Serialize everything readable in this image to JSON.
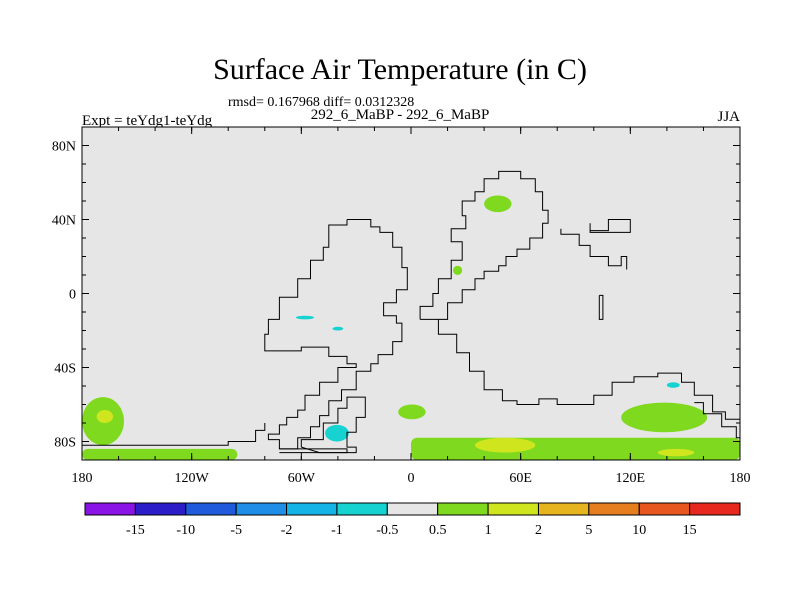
{
  "header": {
    "title": "Surface Air Temperature (in C)",
    "stats": "rmsd= 0.167968 diff= 0.0312328",
    "experiment": "Expt = teYdg1-teYdg",
    "case": "292_6_MaBP - 292_6_MaBP",
    "season": "JJA"
  },
  "colors": {
    "background_field": "#e6e6e6",
    "coastline": "#000000"
  },
  "chart_data": {
    "type": "heatmap",
    "title": "Surface Air Temperature (in C)",
    "subtitle": "rmsd= 0.167968 diff= 0.0312328",
    "x_range": [
      -180,
      180
    ],
    "y_range": [
      -90,
      90
    ],
    "x_ticks": [
      {
        "value": -180,
        "label": "180"
      },
      {
        "value": -120,
        "label": "120W"
      },
      {
        "value": -60,
        "label": "60W"
      },
      {
        "value": 0,
        "label": "0"
      },
      {
        "value": 60,
        "label": "60E"
      },
      {
        "value": 120,
        "label": "120E"
      },
      {
        "value": 180,
        "label": "180"
      }
    ],
    "y_ticks": [
      {
        "value": 80,
        "label": "80N"
      },
      {
        "value": 40,
        "label": "40N"
      },
      {
        "value": 0,
        "label": "0"
      },
      {
        "value": -40,
        "label": "40S"
      },
      {
        "value": -80,
        "label": "80S"
      }
    ],
    "colorbar": {
      "labels": [
        "-15",
        "-10",
        "-5",
        "-2",
        "-1",
        "-0.5",
        "0.5",
        "1",
        "2",
        "5",
        "10",
        "15"
      ],
      "colors": [
        "#8a14e6",
        "#2b1ec8",
        "#1f5adc",
        "#1e8ee6",
        "#14b4e6",
        "#16d2d0",
        "#e6e6e6",
        "#7fd91e",
        "#cfe61e",
        "#e6b41e",
        "#e67d1e",
        "#e6561e",
        "#e6281e"
      ]
    },
    "anomaly_regions": [
      {
        "name": "antarctic-band-west",
        "bin": "0.5 to 1",
        "lon": [
          -180,
          -95
        ],
        "lat": [
          -90,
          -84
        ]
      },
      {
        "name": "antarctic-band-east",
        "bin": "0.5 to 1",
        "lon": [
          0,
          180
        ],
        "lat": [
          -90,
          -78
        ]
      },
      {
        "name": "south-pacific-patch",
        "bin": "0.5 to 1",
        "lon": [
          -180,
          -157
        ],
        "lat": [
          -82,
          -56
        ]
      },
      {
        "name": "south-pacific-core",
        "bin": "1 to 2",
        "lon": [
          -172,
          -163
        ],
        "lat": [
          -70,
          -63
        ]
      },
      {
        "name": "southern-ocean-east",
        "bin": "0.5 to 1",
        "lon": [
          115,
          162
        ],
        "lat": [
          -75,
          -59
        ]
      },
      {
        "name": "antarctic-warm-core-east",
        "bin": "1 to 2",
        "lon": [
          135,
          155
        ],
        "lat": [
          -88,
          -84
        ]
      },
      {
        "name": "antarctic-warm-core-atlantic",
        "bin": "1 to 2",
        "lon": [
          35,
          68
        ],
        "lat": [
          -86,
          -78
        ]
      },
      {
        "name": "south-atlantic-patch",
        "bin": "0.5 to 1",
        "lon": [
          -7,
          8
        ],
        "lat": [
          -68,
          -60
        ]
      },
      {
        "name": "north-atlantic-patch",
        "bin": "0.5 to 1",
        "lon": [
          40,
          55
        ],
        "lat": [
          53,
          44
        ]
      },
      {
        "name": "mediterranean-patch",
        "bin": "0.5 to 1",
        "lon": [
          23,
          28
        ],
        "lat": [
          15,
          10
        ]
      },
      {
        "name": "scotia-cool",
        "bin": "-1 to -0.5",
        "lon": [
          -47,
          -34
        ],
        "lat": [
          -80,
          -71
        ]
      },
      {
        "name": "tropical-atlantic-cool-a",
        "bin": "-1 to -0.5",
        "lon": [
          -63,
          -53
        ],
        "lat": [
          -14,
          -12
        ]
      },
      {
        "name": "tropical-atlantic-cool-b",
        "bin": "-1 to -0.5",
        "lon": [
          -43,
          -37
        ],
        "lat": [
          -20,
          -18
        ]
      },
      {
        "name": "indian-ocean-cool",
        "bin": "-1 to -0.5",
        "lon": [
          140,
          147
        ],
        "lat": [
          -51,
          -48
        ]
      }
    ]
  }
}
